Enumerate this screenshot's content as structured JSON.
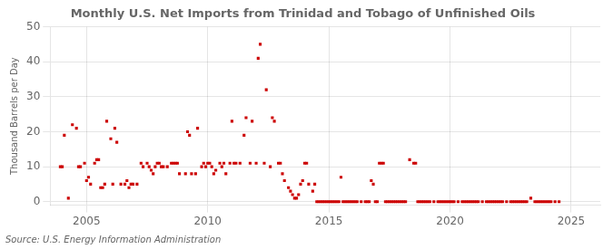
{
  "chart_data": {
    "type": "scatter",
    "title": "Monthly U.S. Net Imports from Trinidad and Tobago of Unfinished Oils",
    "ylabel": "Thousand Barrels per Day",
    "source": "Source: U.S. Energy Information Administration",
    "color": "#cc0000",
    "marker": "square",
    "grid": true,
    "xlim": [
      2003.5,
      2026.2
    ],
    "ylim": [
      -1,
      50
    ],
    "xticks": [
      2005,
      2010,
      2015,
      2020,
      2025
    ],
    "yticks": [
      0,
      10,
      20,
      30,
      40,
      50
    ],
    "x": [
      2003.917,
      2004.0,
      2004.083,
      2004.25,
      2004.417,
      2004.583,
      2004.667,
      2004.75,
      2004.917,
      2005.0,
      2005.083,
      2005.167,
      2005.333,
      2005.417,
      2005.5,
      2005.583,
      2005.667,
      2005.75,
      2005.833,
      2006.0,
      2006.083,
      2006.167,
      2006.25,
      2006.417,
      2006.583,
      2006.667,
      2006.75,
      2006.833,
      2006.917,
      2007.083,
      2007.25,
      2007.333,
      2007.5,
      2007.583,
      2007.667,
      2007.75,
      2007.833,
      2007.917,
      2008.0,
      2008.083,
      2008.167,
      2008.333,
      2008.5,
      2008.583,
      2008.667,
      2008.75,
      2008.833,
      2009.083,
      2009.167,
      2009.25,
      2009.333,
      2009.5,
      2009.583,
      2009.75,
      2009.833,
      2009.917,
      2010.0,
      2010.083,
      2010.167,
      2010.25,
      2010.333,
      2010.5,
      2010.583,
      2010.667,
      2010.75,
      2010.917,
      2011.0,
      2011.083,
      2011.167,
      2011.333,
      2011.5,
      2011.583,
      2011.75,
      2011.833,
      2012.0,
      2012.083,
      2012.167,
      2012.333,
      2012.417,
      2012.583,
      2012.667,
      2012.75,
      2012.917,
      2013.0,
      2013.083,
      2013.167,
      2013.333,
      2013.417,
      2013.5,
      2013.583,
      2013.667,
      2013.75,
      2013.833,
      2013.917,
      2014.0,
      2014.083,
      2014.167,
      2014.333,
      2014.417,
      2014.5,
      2014.583,
      2014.667,
      2014.75,
      2014.833,
      2014.917,
      2015.0,
      2015.083,
      2015.167,
      2015.25,
      2015.333,
      2015.417,
      2015.5,
      2015.583,
      2015.667,
      2015.75,
      2015.833,
      2015.917,
      2016.0,
      2016.083,
      2016.167,
      2016.333,
      2016.5,
      2016.583,
      2016.667,
      2016.75,
      2016.833,
      2016.917,
      2017.0,
      2017.083,
      2017.167,
      2017.25,
      2017.333,
      2017.417,
      2017.5,
      2017.583,
      2017.667,
      2017.75,
      2017.833,
      2017.917,
      2018.0,
      2018.083,
      2018.167,
      2018.333,
      2018.5,
      2018.583,
      2018.667,
      2018.75,
      2018.833,
      2018.917,
      2019.0,
      2019.083,
      2019.167,
      2019.333,
      2019.5,
      2019.583,
      2019.667,
      2019.75,
      2019.833,
      2019.917,
      2020.0,
      2020.083,
      2020.167,
      2020.333,
      2020.5,
      2020.583,
      2020.667,
      2020.75,
      2020.833,
      2020.917,
      2021.0,
      2021.083,
      2021.167,
      2021.333,
      2021.5,
      2021.583,
      2021.667,
      2021.75,
      2021.833,
      2021.917,
      2022.0,
      2022.083,
      2022.167,
      2022.333,
      2022.5,
      2022.583,
      2022.667,
      2022.75,
      2022.833,
      2022.917,
      2023.0,
      2023.083,
      2023.167,
      2023.333,
      2023.5,
      2023.583,
      2023.667,
      2023.75,
      2023.833,
      2023.917,
      2024.0,
      2024.083,
      2024.167,
      2024.333,
      2024.5
    ],
    "values": [
      10,
      10,
      19,
      1,
      22,
      21,
      10,
      10,
      11,
      6,
      7,
      5,
      11,
      12,
      12,
      4,
      4,
      5,
      23,
      18,
      5,
      21,
      17,
      5,
      5,
      6,
      4,
      5,
      5,
      5,
      11,
      10,
      11,
      10,
      9,
      8,
      10,
      11,
      11,
      10,
      10,
      10,
      11,
      11,
      11,
      11,
      8,
      8,
      20,
      19,
      8,
      8,
      21,
      10,
      11,
      10,
      11,
      11,
      10,
      8,
      9,
      11,
      10,
      11,
      8,
      11,
      23,
      11,
      11,
      11,
      19,
      24,
      11,
      23,
      11,
      41,
      45,
      11,
      32,
      10,
      24,
      23,
      11,
      11,
      8,
      6,
      4,
      3,
      2,
      1,
      1,
      2,
      5,
      6,
      11,
      11,
      5,
      3,
      5,
      0,
      0,
      0,
      0,
      0,
      0,
      0,
      0,
      0,
      0,
      0,
      0,
      7,
      0,
      0,
      0,
      0,
      0,
      0,
      0,
      0,
      0,
      0,
      0,
      0,
      6,
      5,
      0,
      0,
      11,
      11,
      11,
      0,
      0,
      0,
      0,
      0,
      0,
      0,
      0,
      0,
      0,
      0,
      12,
      11,
      11,
      0,
      0,
      0,
      0,
      0,
      0,
      0,
      0,
      0,
      0,
      0,
      0,
      0,
      0,
      0,
      0,
      0,
      0,
      0,
      0,
      0,
      0,
      0,
      0,
      0,
      0,
      0,
      0,
      0,
      0,
      0,
      0,
      0,
      0,
      0,
      0,
      0,
      0,
      0,
      0,
      0,
      0,
      0,
      0,
      0,
      0,
      0,
      1,
      0,
      0,
      0,
      0,
      0,
      0,
      0,
      0,
      0,
      0,
      0
    ]
  }
}
